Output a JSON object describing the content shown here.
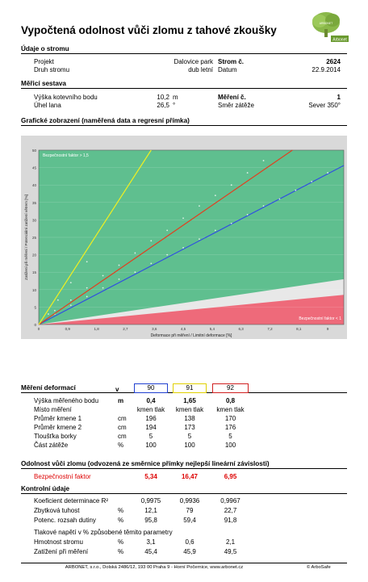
{
  "title": "Vypočtená odolnost vůči zlomu z tahové zkoušky",
  "logo": {
    "tree_text": "ARBONET",
    "caption": "Arbonet"
  },
  "tree": {
    "section": "Údaje o stromu",
    "project_label": "Projekt",
    "project_value": "Dalovice park",
    "tree_no_label": "Strom č.",
    "tree_no_value": "2624",
    "species_label": "Druh stromu",
    "species_value": "dub letní",
    "date_label": "Datum",
    "date_value": "22.9.2014"
  },
  "setup": {
    "section": "Měřicí sestava",
    "anchor_label": "Výška kotevního bodu",
    "anchor_value": "10,2",
    "anchor_unit": "m",
    "measure_label": "Měření č.",
    "measure_value": "1",
    "angle_label": "Úhel lana",
    "angle_value": "26,5",
    "angle_unit": "°",
    "direction_label": "Směr zátěže",
    "direction_value": "Sever 350°"
  },
  "graph_section": "Grafické zobrazení (naměřená data a regresní přímka)",
  "chart_data": {
    "type": "scatter",
    "xlabel": "Deformace při měření / Limitní deformace [%]",
    "ylabel": "Zatížení při měření / Potenciální zatížení větrem [%]",
    "xlim": [
      0,
      9.5
    ],
    "ylim": [
      0,
      50
    ],
    "xticks": [
      "0",
      "0,9",
      "1,8",
      "2,7",
      "3,6",
      "4,5",
      "5,4",
      "6,3",
      "7,2",
      "8,1",
      "9"
    ],
    "yticks": [
      "0",
      "5",
      "10",
      "15",
      "20",
      "25",
      "30",
      "35",
      "40",
      "45",
      "50"
    ],
    "safety_upper_label": "Bezpečnostní faktor > 1,5",
    "safety_lower_label": "Bezpečnostní faktor < 1",
    "colors": {
      "safe": "#5fbf8f",
      "neutral": "#e8e8e8",
      "danger": "#ee6a7a",
      "outer": "#d9d9d9"
    },
    "series": [
      {
        "color": "#3050e0",
        "points": [
          [
            0.5,
            3
          ],
          [
            1.0,
            5.5
          ],
          [
            1.5,
            8
          ],
          [
            2.0,
            10.5
          ],
          [
            2.5,
            13
          ],
          [
            3.0,
            15
          ],
          [
            3.5,
            17.5
          ],
          [
            4.0,
            20
          ],
          [
            4.5,
            22
          ],
          [
            5.0,
            24.5
          ],
          [
            5.5,
            27
          ],
          [
            6.0,
            29
          ],
          [
            6.5,
            31.5
          ],
          [
            7.0,
            34
          ],
          [
            7.5,
            36
          ],
          [
            8.0,
            38.5
          ],
          [
            8.5,
            41
          ],
          [
            9.0,
            43.5
          ]
        ],
        "line": [
          [
            0,
            0
          ],
          [
            9.5,
            45.6
          ]
        ]
      },
      {
        "color": "#e04020",
        "points": [
          [
            0.5,
            4
          ],
          [
            1.0,
            7
          ],
          [
            1.5,
            10.5
          ],
          [
            2.0,
            14
          ],
          [
            2.5,
            17
          ],
          [
            3.0,
            20.5
          ],
          [
            3.5,
            24
          ],
          [
            4.0,
            27
          ],
          [
            4.5,
            30.5
          ],
          [
            5.0,
            34
          ],
          [
            5.5,
            37
          ],
          [
            6.0,
            40
          ],
          [
            6.5,
            43.5
          ],
          [
            7.0,
            47
          ]
        ],
        "line": [
          [
            0,
            0
          ],
          [
            7.9,
            50
          ]
        ]
      },
      {
        "color": "#f0f020",
        "points": [
          [
            0.3,
            3
          ],
          [
            0.6,
            7
          ],
          [
            1.0,
            12
          ],
          [
            1.5,
            18
          ]
        ],
        "line": [
          [
            0,
            0
          ],
          [
            3.5,
            50
          ]
        ]
      }
    ]
  },
  "deform": {
    "section": "Měření deformací",
    "v_label": "v",
    "columns": [
      {
        "id": "90",
        "color": "#2040d0"
      },
      {
        "id": "91",
        "color": "#e0d000"
      },
      {
        "id": "92",
        "color": "#d02020"
      }
    ],
    "rows": [
      {
        "label": "Výška měřeného bodu",
        "unit": "m",
        "bold": true,
        "values": [
          "0,4",
          "1,65",
          "0,8"
        ]
      },
      {
        "label": "Místo měření",
        "unit": "",
        "bold": false,
        "values": [
          "kmen tlak",
          "kmen tlak",
          "kmen tlak"
        ]
      },
      {
        "label": "Průměr kmene 1",
        "unit": "cm",
        "bold": false,
        "values": [
          "196",
          "138",
          "170"
        ]
      },
      {
        "label": "Průměr kmene 2",
        "unit": "cm",
        "bold": false,
        "values": [
          "194",
          "173",
          "176"
        ]
      },
      {
        "label": "Tloušťka borky",
        "unit": "cm",
        "bold": false,
        "values": [
          "5",
          "5",
          "5"
        ]
      },
      {
        "label": "Část zátěže",
        "unit": "%",
        "bold": false,
        "values": [
          "100",
          "100",
          "100"
        ]
      }
    ]
  },
  "resistance": {
    "section": "Odolnost vůči zlomu (odvozená ze směrnice přímky nejlepší lineární závislosti)",
    "label": "Bezpečnostní faktor",
    "values": [
      "5,34",
      "16,47",
      "6,95"
    ]
  },
  "control": {
    "section": "Kontrolní údaje",
    "rows": [
      {
        "label": "Koeficient determinace R²",
        "unit": "",
        "values": [
          "0,9975",
          "0,9936",
          "0,9967"
        ]
      },
      {
        "label": "Zbytková tuhost",
        "unit": "%",
        "values": [
          "12,1",
          "79",
          "22,7"
        ]
      },
      {
        "label": "Potenc. rozsah dutiny",
        "unit": "%",
        "values": [
          "95,8",
          "59,4",
          "91,8"
        ]
      }
    ],
    "stress_title": "Tlakové napětí v % způsobené těmito parametry",
    "stress_rows": [
      {
        "label": "Hmotnost stromu",
        "unit": "%",
        "values": [
          "3,1",
          "0,6",
          "2,1"
        ]
      },
      {
        "label": "Zatížení při měření",
        "unit": "%",
        "values": [
          "45,4",
          "45,9",
          "49,5"
        ]
      }
    ]
  },
  "footer": {
    "text": "ARBONET, s.r.o., Dolská 2486/12, 193 00 Praha 9 - Horní Počernice, www.arbonet.cz",
    "brand": "© ArboSafe"
  }
}
